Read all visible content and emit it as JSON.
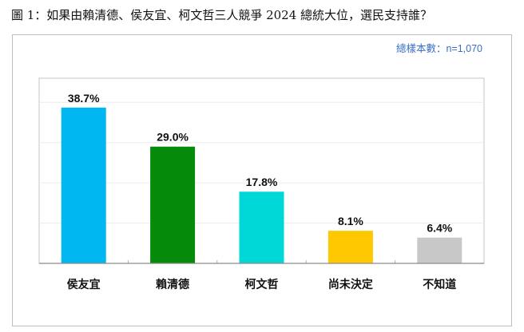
{
  "title": "圖 1：如果由賴清德、侯友宜、柯文哲三人競爭 2024 總統大位，選民支持誰？",
  "sample_note": "總樣本數：n=1,070",
  "chart_data": {
    "type": "bar",
    "categories": [
      "侯友宜",
      "賴清德",
      "柯文哲",
      "尚未決定",
      "不知道"
    ],
    "values": [
      38.7,
      29.0,
      17.8,
      8.1,
      6.4
    ],
    "data_labels": [
      "38.7%",
      "29.0%",
      "17.8%",
      "8.1%",
      "6.4%"
    ],
    "colors": [
      "#00b7f1",
      "#058a0a",
      "#00d8d8",
      "#ffc800",
      "#c8c8c8"
    ],
    "ylim": [
      0,
      46
    ],
    "grid": true,
    "unit": "%"
  }
}
